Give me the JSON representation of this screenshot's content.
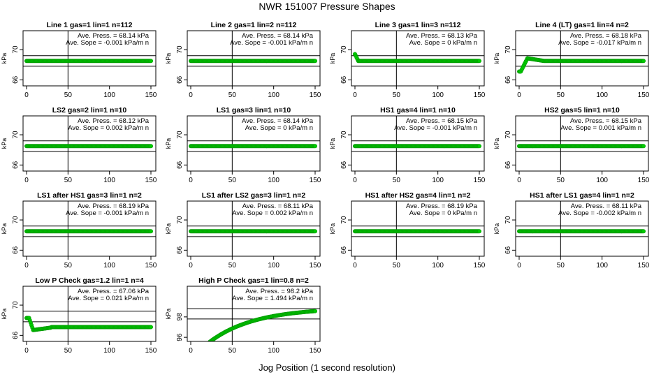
{
  "figure": {
    "title": "NWR  151007  Pressure Shapes",
    "xlabel": "Jog Position (1 second resolution)"
  },
  "colors": {
    "points": "#00cc00",
    "point_edge": "#009900",
    "axes": "#000000"
  },
  "chart_data": [
    {
      "type": "scatter",
      "title": "Line 1 gas=1 lin=1 n=112",
      "ylabel": "kPa",
      "xlim": [
        0,
        150
      ],
      "xticks": [
        0,
        50,
        100,
        150
      ],
      "ylim": [
        65.2,
        72.5
      ],
      "yticks": [
        66,
        70
      ],
      "hline": [
        67.8,
        69.2
      ],
      "vline": 50,
      "shape": "flat",
      "level": 68.5,
      "n": 151,
      "annotation": [
        "Ave. Press. = 68.14  kPa",
        "Ave. Sope = -0.001  kPa/m n"
      ]
    },
    {
      "type": "scatter",
      "title": "Line 2 gas=1 lin=2 n=112",
      "ylabel": "kPa",
      "xlim": [
        0,
        150
      ],
      "xticks": [
        0,
        50,
        100,
        150
      ],
      "ylim": [
        65.2,
        72.5
      ],
      "yticks": [
        66,
        70
      ],
      "hline": [
        67.8,
        69.2
      ],
      "vline": 50,
      "shape": "flat",
      "level": 68.5,
      "n": 151,
      "annotation": [
        "Ave. Press. = 68.14  kPa",
        "Ave. Sope = -0.001  kPa/m n"
      ]
    },
    {
      "type": "scatter",
      "title": "Line 3 gas=1 lin=3 n=112",
      "ylabel": "kPa",
      "xlim": [
        0,
        150
      ],
      "xticks": [
        0,
        50,
        100,
        150
      ],
      "ylim": [
        65.2,
        72.5
      ],
      "yticks": [
        66,
        70
      ],
      "hline": [
        67.8,
        69.2
      ],
      "vline": 50,
      "shape": "bump",
      "level": 68.5,
      "n": 151,
      "annotation": [
        "Ave. Press. = 68.13  kPa",
        "Ave. Sope = 0  kPa/m n"
      ]
    },
    {
      "type": "scatter",
      "title": "Line 4 (LT) gas=1 lin=4 n=2",
      "ylabel": "kPa",
      "xlim": [
        0,
        150
      ],
      "xticks": [
        0,
        50,
        100,
        150
      ],
      "ylim": [
        65.2,
        72.5
      ],
      "yticks": [
        66,
        70
      ],
      "hline": [
        67.8,
        69.2
      ],
      "vline": 50,
      "shape": "rise",
      "level": 68.5,
      "n": 151,
      "annotation": [
        "Ave. Press. = 68.18  kPa",
        "Ave. Sope = -0.017  kPa/m n"
      ]
    },
    {
      "type": "scatter",
      "title": "LS2 gas=2 lin=1 n=10",
      "ylabel": "kPa",
      "xlim": [
        0,
        150
      ],
      "xticks": [
        0,
        50,
        100,
        150
      ],
      "ylim": [
        65.2,
        72.5
      ],
      "yticks": [
        66,
        70
      ],
      "hline": [
        67.8,
        69.2
      ],
      "vline": 50,
      "shape": "flat",
      "level": 68.5,
      "n": 151,
      "annotation": [
        "Ave. Press. = 68.12  kPa",
        "Ave. Sope = 0.002  kPa/m n"
      ]
    },
    {
      "type": "scatter",
      "title": "LS1 gas=3 lin=1 n=10",
      "ylabel": "kPa",
      "xlim": [
        0,
        150
      ],
      "xticks": [
        0,
        50,
        100,
        150
      ],
      "ylim": [
        65.2,
        72.5
      ],
      "yticks": [
        66,
        70
      ],
      "hline": [
        67.8,
        69.2
      ],
      "vline": 50,
      "shape": "flat",
      "level": 68.5,
      "n": 151,
      "annotation": [
        "Ave. Press. = 68.14  kPa",
        "Ave. Sope = 0  kPa/m n"
      ]
    },
    {
      "type": "scatter",
      "title": "HS1 gas=4 lin=1 n=10",
      "ylabel": "kPa",
      "xlim": [
        0,
        150
      ],
      "xticks": [
        0,
        50,
        100,
        150
      ],
      "ylim": [
        65.2,
        72.5
      ],
      "yticks": [
        66,
        70
      ],
      "hline": [
        67.8,
        69.2
      ],
      "vline": 50,
      "shape": "flat",
      "level": 68.5,
      "n": 151,
      "annotation": [
        "Ave. Press. = 68.15  kPa",
        "Ave. Sope = -0.001  kPa/m n"
      ]
    },
    {
      "type": "scatter",
      "title": "HS2 gas=5 lin=1 n=10",
      "ylabel": "kPa",
      "xlim": [
        0,
        150
      ],
      "xticks": [
        0,
        50,
        100,
        150
      ],
      "ylim": [
        65.2,
        72.5
      ],
      "yticks": [
        66,
        70
      ],
      "hline": [
        67.8,
        69.2
      ],
      "vline": 50,
      "shape": "flat",
      "level": 68.5,
      "n": 151,
      "annotation": [
        "Ave. Press. = 68.15  kPa",
        "Ave. Sope = 0.001  kPa/m n"
      ]
    },
    {
      "type": "scatter",
      "title": "LS1 after HS1 gas=3 lin=1 n=2",
      "ylabel": "kPa",
      "xlim": [
        0,
        150
      ],
      "xticks": [
        0,
        50,
        100,
        150
      ],
      "ylim": [
        65.2,
        72.5
      ],
      "yticks": [
        66,
        70
      ],
      "hline": [
        67.8,
        69.2
      ],
      "vline": 50,
      "shape": "flat",
      "level": 68.5,
      "n": 151,
      "annotation": [
        "Ave. Press. = 68.19  kPa",
        "Ave. Sope = -0.001  kPa/m n"
      ]
    },
    {
      "type": "scatter",
      "title": "LS1 after LS2 gas=3 lin=1 n=2",
      "ylabel": "kPa",
      "xlim": [
        0,
        150
      ],
      "xticks": [
        0,
        50,
        100,
        150
      ],
      "ylim": [
        65.2,
        72.5
      ],
      "yticks": [
        66,
        70
      ],
      "hline": [
        67.8,
        69.2
      ],
      "vline": 50,
      "shape": "flat",
      "level": 68.5,
      "n": 151,
      "annotation": [
        "Ave. Press. = 68.11  kPa",
        "Ave. Sope = 0.002  kPa/m n"
      ]
    },
    {
      "type": "scatter",
      "title": "HS1 after HS2 gas=4 lin=1 n=2",
      "ylabel": "kPa",
      "xlim": [
        0,
        150
      ],
      "xticks": [
        0,
        50,
        100,
        150
      ],
      "ylim": [
        65.2,
        72.5
      ],
      "yticks": [
        66,
        70
      ],
      "hline": [
        67.8,
        69.2
      ],
      "vline": 50,
      "shape": "flat",
      "level": 68.5,
      "n": 151,
      "annotation": [
        "Ave. Press. = 68.19  kPa",
        "Ave. Sope = 0  kPa/m n"
      ]
    },
    {
      "type": "scatter",
      "title": "HS1 after LS1 gas=4 lin=1 n=2",
      "ylabel": "kPa",
      "xlim": [
        0,
        150
      ],
      "xticks": [
        0,
        50,
        100,
        150
      ],
      "ylim": [
        65.2,
        72.5
      ],
      "yticks": [
        66,
        70
      ],
      "hline": [
        67.8,
        69.2
      ],
      "vline": 50,
      "shape": "flat",
      "level": 68.5,
      "n": 151,
      "annotation": [
        "Ave. Press. = 68.11  kPa",
        "Ave. Sope = -0.002  kPa/m n"
      ]
    },
    {
      "type": "scatter",
      "title": "Low P Check gas=1.2 lin=1 n=4",
      "ylabel": "kPa",
      "xlim": [
        0,
        150
      ],
      "xticks": [
        0,
        50,
        100,
        150
      ],
      "ylim": [
        65.2,
        72.5
      ],
      "yticks": [
        66,
        70
      ],
      "hline": [
        67.8,
        69.2
      ],
      "vline": 50,
      "shape": "dip",
      "level": 67.1,
      "n": 151,
      "annotation": [
        "Ave. Press. = 67.06  kPa",
        "Ave. Sope = 0.021  kPa/m n"
      ]
    },
    {
      "type": "scatter",
      "title": "High P Check gas=1 lin=0.8 n=2",
      "ylabel": "kPa",
      "xlim": [
        0,
        150
      ],
      "xticks": [
        0,
        50,
        100,
        150
      ],
      "ylim": [
        95.6,
        101.0
      ],
      "yticks": [
        96,
        98
      ],
      "hline": [
        97.8,
        98.8
      ],
      "vline": 50,
      "shape": "climb",
      "level": 98.2,
      "n": 151,
      "annotation": [
        "Ave. Press. = 98.2  kPa",
        "Ave. Sope = 1.494  kPa/m n"
      ]
    }
  ]
}
